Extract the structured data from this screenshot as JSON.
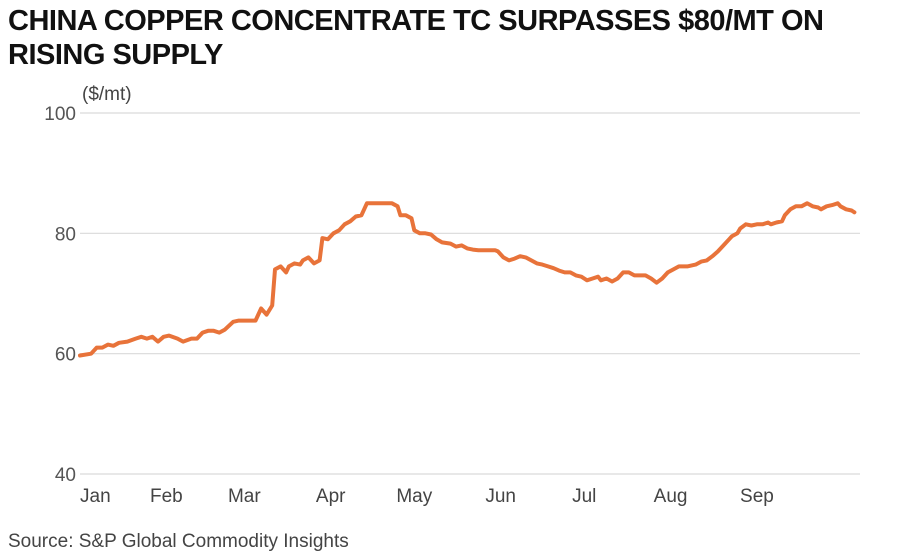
{
  "chart_data": {
    "type": "line",
    "title": "CHINA COPPER CONCENTRATE TC SURPASSES $80/MT ON RISING SUPPLY",
    "unit_label": "($/mt)",
    "source": "Source: S&P Global Commodity Insights",
    "ylim": [
      40,
      100
    ],
    "yticks": [
      "100",
      "80",
      "60",
      "40"
    ],
    "ytick_values": [
      100,
      80,
      60,
      40
    ],
    "xlim": [
      0,
      272
    ],
    "xticks": [
      "Jan",
      "Feb",
      "Mar",
      "Apr",
      "May",
      "Jun",
      "Jul",
      "Aug",
      "Sep"
    ],
    "xtick_days": [
      0,
      31,
      59,
      90,
      120,
      151,
      181,
      212,
      243
    ],
    "grid": true,
    "color": "#e8733a",
    "x_unit": "day of year (Jan 1 = 0)",
    "series": [
      {
        "points": [
          [
            0,
            59.7
          ],
          [
            4,
            60.0
          ],
          [
            6,
            61.0
          ],
          [
            8,
            61.0
          ],
          [
            10,
            61.5
          ],
          [
            12,
            61.3
          ],
          [
            14,
            61.8
          ],
          [
            17,
            62.0
          ],
          [
            20,
            62.5
          ],
          [
            22,
            62.8
          ],
          [
            24,
            62.5
          ],
          [
            26,
            62.8
          ],
          [
            28,
            62.0
          ],
          [
            30,
            62.8
          ],
          [
            32,
            63.0
          ],
          [
            35,
            62.5
          ],
          [
            37,
            62.0
          ],
          [
            40,
            62.5
          ],
          [
            42,
            62.5
          ],
          [
            44,
            63.5
          ],
          [
            46,
            63.8
          ],
          [
            48,
            63.8
          ],
          [
            50,
            63.5
          ],
          [
            52,
            64.0
          ],
          [
            55,
            65.3
          ],
          [
            57,
            65.5
          ],
          [
            60,
            65.5
          ],
          [
            63,
            65.5
          ],
          [
            65,
            67.5
          ],
          [
            67,
            66.5
          ],
          [
            69,
            68.0
          ],
          [
            70,
            74.0
          ],
          [
            72,
            74.5
          ],
          [
            74,
            73.5
          ],
          [
            75,
            74.5
          ],
          [
            77,
            75.0
          ],
          [
            79,
            74.8
          ],
          [
            80,
            75.5
          ],
          [
            82,
            76.0
          ],
          [
            84,
            75.0
          ],
          [
            86,
            75.5
          ],
          [
            87,
            79.2
          ],
          [
            89,
            79.0
          ],
          [
            91,
            80.0
          ],
          [
            93,
            80.5
          ],
          [
            95,
            81.5
          ],
          [
            97,
            82.0
          ],
          [
            99,
            82.8
          ],
          [
            101,
            83.0
          ],
          [
            103,
            85.0
          ],
          [
            105,
            85.0
          ],
          [
            108,
            85.0
          ],
          [
            112,
            85.0
          ],
          [
            114,
            84.5
          ],
          [
            115,
            83.0
          ],
          [
            117,
            83.0
          ],
          [
            119,
            82.5
          ],
          [
            120,
            80.5
          ],
          [
            122,
            80.0
          ],
          [
            124,
            80.0
          ],
          [
            126,
            79.8
          ],
          [
            128,
            79.0
          ],
          [
            130,
            78.5
          ],
          [
            133,
            78.3
          ],
          [
            135,
            77.8
          ],
          [
            137,
            78.0
          ],
          [
            139,
            77.5
          ],
          [
            141,
            77.3
          ],
          [
            143,
            77.2
          ],
          [
            146,
            77.2
          ],
          [
            149,
            77.2
          ],
          [
            150,
            77.0
          ],
          [
            152,
            76.0
          ],
          [
            154,
            75.5
          ],
          [
            156,
            75.8
          ],
          [
            158,
            76.2
          ],
          [
            160,
            76.0
          ],
          [
            162,
            75.5
          ],
          [
            164,
            75.0
          ],
          [
            166,
            74.8
          ],
          [
            168,
            74.5
          ],
          [
            170,
            74.2
          ],
          [
            172,
            73.8
          ],
          [
            174,
            73.5
          ],
          [
            176,
            73.5
          ],
          [
            178,
            73.0
          ],
          [
            180,
            72.8
          ],
          [
            182,
            72.2
          ],
          [
            184,
            72.5
          ],
          [
            186,
            72.8
          ],
          [
            187,
            72.2
          ],
          [
            189,
            72.5
          ],
          [
            191,
            72.0
          ],
          [
            193,
            72.5
          ],
          [
            195,
            73.5
          ],
          [
            197,
            73.5
          ],
          [
            199,
            73.0
          ],
          [
            201,
            73.0
          ],
          [
            203,
            73.0
          ],
          [
            205,
            72.5
          ],
          [
            207,
            71.8
          ],
          [
            209,
            72.5
          ],
          [
            211,
            73.5
          ],
          [
            213,
            74.0
          ],
          [
            215,
            74.5
          ],
          [
            218,
            74.5
          ],
          [
            221,
            74.8
          ],
          [
            223,
            75.3
          ],
          [
            225,
            75.5
          ],
          [
            227,
            76.2
          ],
          [
            229,
            77.0
          ],
          [
            231,
            78.0
          ],
          [
            233,
            79.0
          ],
          [
            234,
            79.5
          ],
          [
            236,
            80.0
          ],
          [
            237,
            80.8
          ],
          [
            239,
            81.5
          ],
          [
            241,
            81.3
          ],
          [
            243,
            81.5
          ],
          [
            245,
            81.5
          ],
          [
            247,
            81.8
          ],
          [
            248,
            81.5
          ],
          [
            250,
            81.8
          ],
          [
            252,
            82.0
          ],
          [
            253,
            83.0
          ],
          [
            255,
            84.0
          ],
          [
            257,
            84.5
          ],
          [
            259,
            84.5
          ],
          [
            261,
            85.0
          ],
          [
            263,
            84.5
          ],
          [
            265,
            84.3
          ],
          [
            266,
            84.0
          ],
          [
            268,
            84.5
          ],
          [
            270,
            84.7
          ],
          [
            272,
            85.0
          ],
          [
            273,
            84.5
          ],
          [
            275,
            84.0
          ],
          [
            277,
            83.8
          ],
          [
            278,
            83.5
          ]
        ]
      }
    ]
  }
}
